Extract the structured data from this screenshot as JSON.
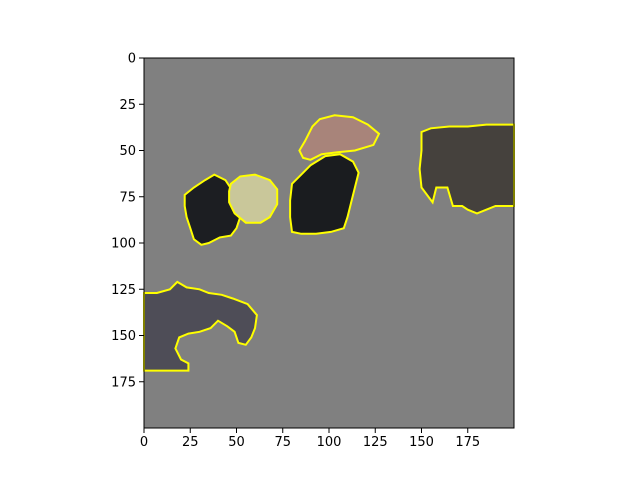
{
  "figure": {
    "background_color": "#ffffff",
    "axes_background": "#808080",
    "outline_color": "#ffff00",
    "x_axis": {
      "range": [
        0,
        200
      ],
      "ticks": [
        0,
        25,
        50,
        75,
        100,
        125,
        150,
        175
      ],
      "tick_labels": [
        "0",
        "25",
        "50",
        "75",
        "100",
        "125",
        "150",
        "175"
      ]
    },
    "y_axis": {
      "range": [
        0,
        200
      ],
      "inverted": true,
      "ticks": [
        0,
        25,
        50,
        75,
        100,
        125,
        150,
        175
      ],
      "tick_labels": [
        "0",
        "25",
        "50",
        "75",
        "100",
        "125",
        "150",
        "175"
      ]
    },
    "image_regions": [
      {
        "name": "dark-fur-patch-left",
        "fill": "#1c1e22",
        "points": [
          [
            22,
            74
          ],
          [
            27,
            70
          ],
          [
            33,
            66
          ],
          [
            38,
            63
          ],
          [
            44,
            66
          ],
          [
            48,
            72
          ],
          [
            50,
            78
          ],
          [
            52,
            86
          ],
          [
            50,
            92
          ],
          [
            47,
            96
          ],
          [
            41,
            97
          ],
          [
            35,
            100
          ],
          [
            31,
            101
          ],
          [
            27,
            98
          ],
          [
            25,
            92
          ],
          [
            23,
            86
          ],
          [
            22,
            80
          ]
        ]
      },
      {
        "name": "pale-feather-patch",
        "fill": "#c9c79a",
        "points": [
          [
            47,
            68
          ],
          [
            52,
            64
          ],
          [
            60,
            63
          ],
          [
            68,
            66
          ],
          [
            72,
            71
          ],
          [
            72,
            79
          ],
          [
            68,
            86
          ],
          [
            63,
            89
          ],
          [
            55,
            89
          ],
          [
            49,
            84
          ],
          [
            46,
            78
          ],
          [
            46,
            72
          ]
        ]
      },
      {
        "name": "dark-body-patch-center",
        "fill": "#1a1c1f",
        "points": [
          [
            80,
            68
          ],
          [
            85,
            63
          ],
          [
            90,
            58
          ],
          [
            98,
            53
          ],
          [
            106,
            52
          ],
          [
            113,
            56
          ],
          [
            116,
            62
          ],
          [
            114,
            70
          ],
          [
            112,
            78
          ],
          [
            110,
            86
          ],
          [
            108,
            92
          ],
          [
            101,
            94
          ],
          [
            93,
            95
          ],
          [
            85,
            95
          ],
          [
            80,
            94
          ],
          [
            79,
            86
          ],
          [
            79,
            77
          ]
        ]
      },
      {
        "name": "beak-patch",
        "fill": "#a8847a",
        "points": [
          [
            91,
            37
          ],
          [
            95,
            33
          ],
          [
            103,
            31
          ],
          [
            113,
            32
          ],
          [
            121,
            36
          ],
          [
            127,
            41
          ],
          [
            124,
            47
          ],
          [
            114,
            50
          ],
          [
            104,
            51
          ],
          [
            96,
            52
          ],
          [
            90,
            55
          ],
          [
            86,
            54
          ],
          [
            84,
            50
          ],
          [
            87,
            45
          ]
        ]
      },
      {
        "name": "gray-fur-patch-right",
        "fill": "#45413d",
        "points": [
          [
            150,
            40
          ],
          [
            155,
            38
          ],
          [
            165,
            37
          ],
          [
            175,
            37
          ],
          [
            185,
            36
          ],
          [
            200,
            36
          ],
          [
            200,
            80
          ],
          [
            190,
            80
          ],
          [
            185,
            82
          ],
          [
            180,
            84
          ],
          [
            175,
            82
          ],
          [
            172,
            80
          ],
          [
            167,
            80
          ],
          [
            164,
            70
          ],
          [
            158,
            70
          ],
          [
            156,
            78
          ],
          [
            150,
            70
          ],
          [
            149,
            60
          ],
          [
            150,
            50
          ]
        ]
      },
      {
        "name": "gray-fur-patch-lower-left",
        "fill": "#4e4d57",
        "points": [
          [
            0,
            127
          ],
          [
            7,
            127
          ],
          [
            14,
            125
          ],
          [
            18,
            121
          ],
          [
            23,
            124
          ],
          [
            30,
            125
          ],
          [
            35,
            127
          ],
          [
            42,
            128
          ],
          [
            48,
            130
          ],
          [
            56,
            133
          ],
          [
            61,
            139
          ],
          [
            60,
            146
          ],
          [
            58,
            151
          ],
          [
            55,
            155
          ],
          [
            51,
            154
          ],
          [
            49,
            148
          ],
          [
            45,
            145
          ],
          [
            40,
            142
          ],
          [
            36,
            146
          ],
          [
            30,
            148
          ],
          [
            24,
            149
          ],
          [
            19,
            151
          ],
          [
            17,
            157
          ],
          [
            20,
            163
          ],
          [
            24,
            165
          ],
          [
            24,
            169
          ],
          [
            16,
            169
          ],
          [
            8,
            169
          ],
          [
            0,
            169
          ]
        ]
      }
    ]
  }
}
